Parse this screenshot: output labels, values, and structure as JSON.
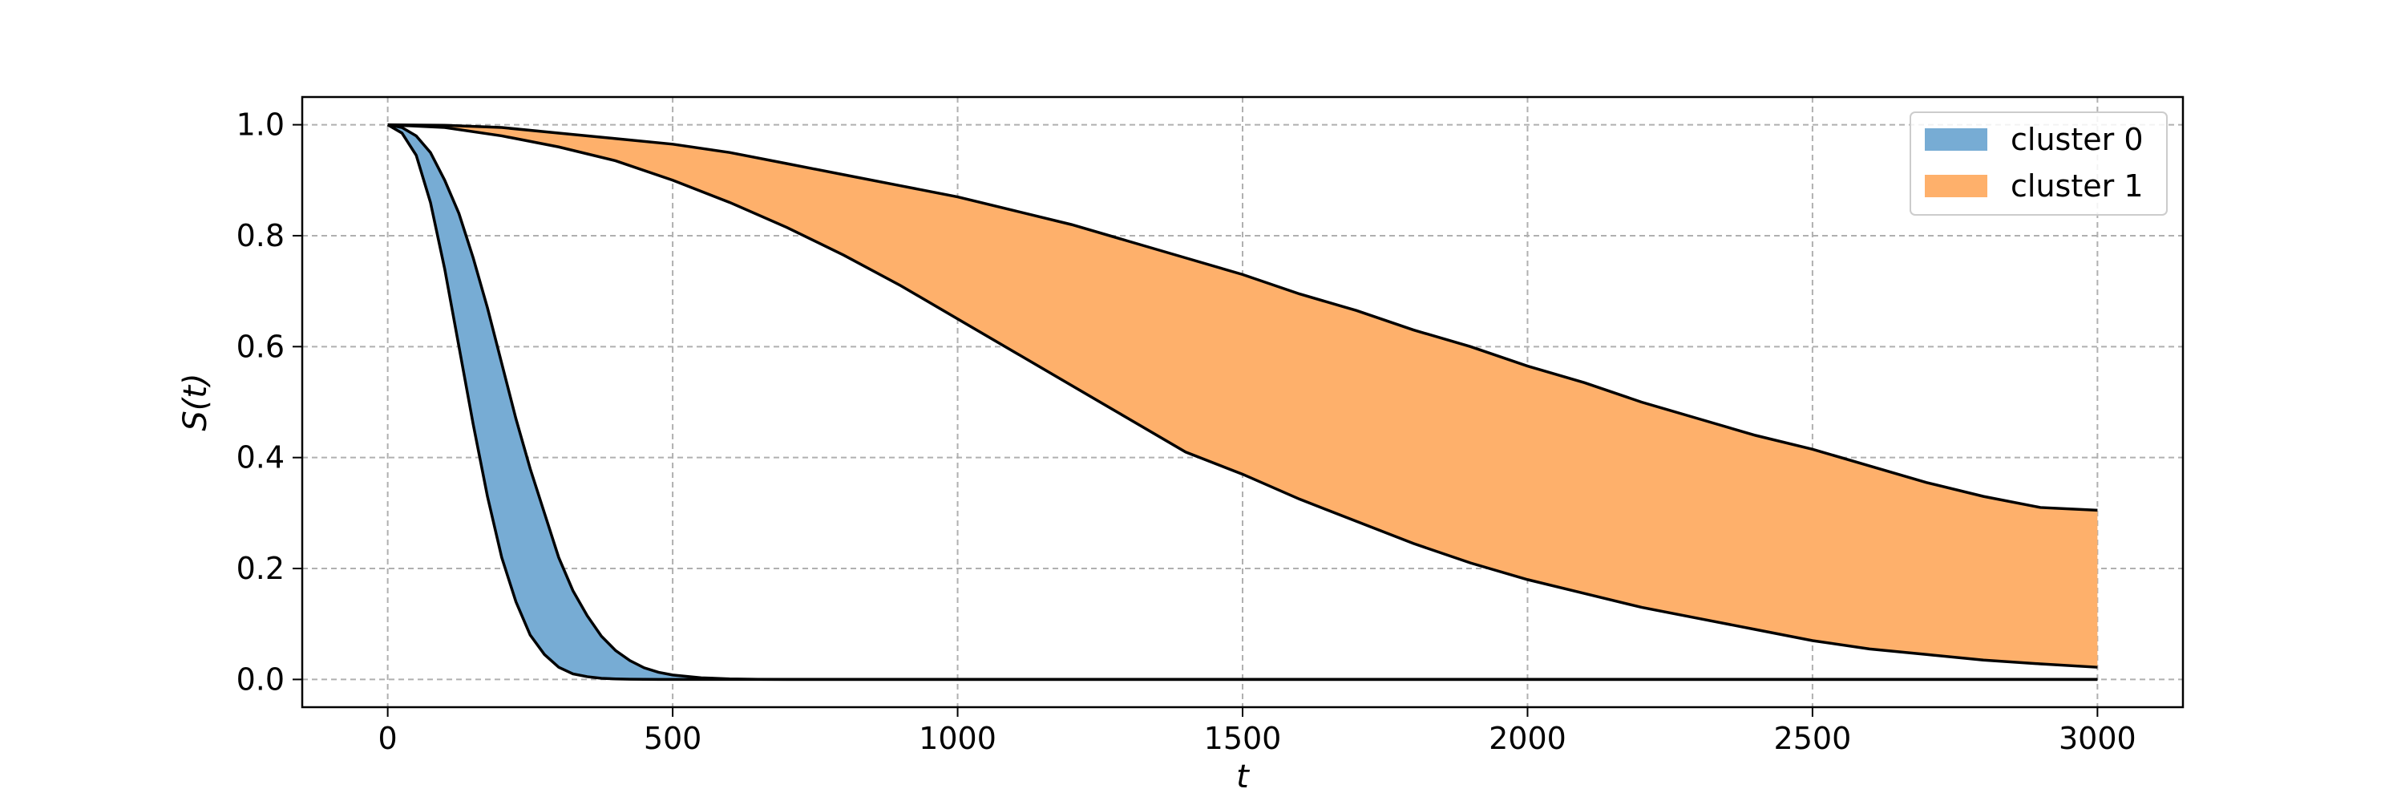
{
  "chart_data": {
    "type": "area",
    "xlabel": "t",
    "ylabel": "S(t)",
    "xlim": [
      -150,
      3150
    ],
    "ylim": [
      -0.05,
      1.05
    ],
    "x_ticks": [
      0,
      500,
      1000,
      1500,
      2000,
      2500,
      3000
    ],
    "y_ticks": [
      0.0,
      0.2,
      0.4,
      0.6,
      0.8,
      1.0
    ],
    "x_tick_labels": [
      "0",
      "500",
      "1000",
      "1500",
      "2000",
      "2500",
      "3000"
    ],
    "y_tick_labels": [
      "0.0",
      "0.2",
      "0.4",
      "0.6",
      "0.8",
      "1.0"
    ],
    "grid": true,
    "legend_position": "top-right",
    "series": [
      {
        "name": "cluster 0",
        "color": "#77acd4",
        "x": [
          0,
          25,
          50,
          75,
          100,
          125,
          150,
          175,
          200,
          225,
          250,
          275,
          300,
          325,
          350,
          375,
          400,
          425,
          450,
          475,
          500,
          550,
          600,
          650,
          700,
          800,
          1000,
          1500,
          2000,
          2500,
          3000
        ],
        "lower": [
          1.0,
          0.985,
          0.945,
          0.86,
          0.74,
          0.6,
          0.46,
          0.33,
          0.22,
          0.14,
          0.08,
          0.045,
          0.022,
          0.01,
          0.005,
          0.002,
          0.001,
          0.0005,
          0.0002,
          0.0001,
          0.0,
          0.0,
          0.0,
          0.0,
          0.0,
          0.0,
          0.0,
          0.0,
          0.0,
          0.0,
          0.0
        ],
        "upper": [
          1.0,
          0.995,
          0.98,
          0.95,
          0.9,
          0.84,
          0.76,
          0.67,
          0.57,
          0.47,
          0.38,
          0.3,
          0.22,
          0.16,
          0.115,
          0.078,
          0.052,
          0.034,
          0.021,
          0.013,
          0.008,
          0.003,
          0.001,
          0.0003,
          0.0001,
          0.0,
          0.0,
          0.0,
          0.0,
          0.0,
          0.0
        ]
      },
      {
        "name": "cluster 1",
        "color": "#feb06b",
        "x": [
          0,
          100,
          200,
          300,
          400,
          500,
          600,
          700,
          800,
          900,
          1000,
          1100,
          1200,
          1300,
          1400,
          1500,
          1600,
          1700,
          1800,
          1900,
          2000,
          2100,
          2200,
          2300,
          2400,
          2500,
          2600,
          2700,
          2800,
          2900,
          3000
        ],
        "lower": [
          1.0,
          0.995,
          0.98,
          0.96,
          0.935,
          0.9,
          0.86,
          0.815,
          0.765,
          0.71,
          0.65,
          0.59,
          0.53,
          0.47,
          0.41,
          0.37,
          0.325,
          0.285,
          0.245,
          0.21,
          0.18,
          0.155,
          0.13,
          0.11,
          0.09,
          0.07,
          0.055,
          0.045,
          0.035,
          0.028,
          0.022
        ],
        "upper": [
          1.0,
          0.999,
          0.995,
          0.985,
          0.975,
          0.965,
          0.95,
          0.93,
          0.91,
          0.89,
          0.87,
          0.845,
          0.82,
          0.79,
          0.76,
          0.73,
          0.695,
          0.665,
          0.63,
          0.6,
          0.565,
          0.535,
          0.5,
          0.47,
          0.44,
          0.415,
          0.385,
          0.355,
          0.33,
          0.31,
          0.305
        ]
      }
    ]
  }
}
